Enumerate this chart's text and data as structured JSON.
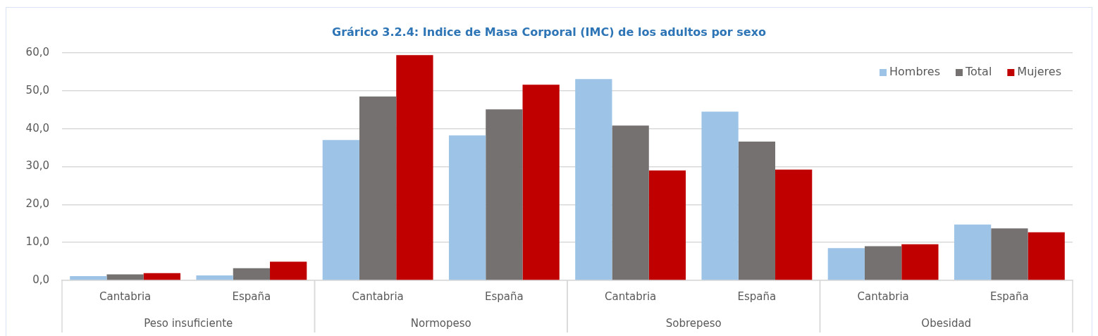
{
  "chart_data": {
    "type": "bar",
    "title": "Grárico 3.2.4: Indice de Masa Corporal (IMC) de los adultos por sexo",
    "categories": [
      "Cantabria",
      "España",
      "Cantabria",
      "España",
      "Cantabria",
      "España",
      "Cantabria",
      "España"
    ],
    "series": [
      {
        "name": "Hombres",
        "color": "#9dc3e6",
        "values": [
          1.1,
          1.3,
          37.0,
          38.2,
          53.1,
          44.5,
          8.5,
          14.7
        ]
      },
      {
        "name": "Total",
        "color": "#767171",
        "values": [
          1.6,
          3.2,
          48.5,
          45.1,
          40.8,
          36.6,
          9.0,
          13.7
        ]
      },
      {
        "name": "Mujeres",
        "color": "#c00000",
        "values": [
          1.9,
          4.9,
          59.4,
          51.6,
          29.0,
          29.2,
          9.5,
          12.7
        ]
      }
    ],
    "ylim": [
      0,
      60
    ],
    "yticks": [
      {
        "value": 0,
        "label": "0,0"
      },
      {
        "value": 10,
        "label": "10,0"
      },
      {
        "value": 20,
        "label": "20,0"
      },
      {
        "value": 30,
        "label": "30,0"
      },
      {
        "value": 40,
        "label": "40,0"
      },
      {
        "value": 50,
        "label": "50,0"
      },
      {
        "value": 60,
        "label": "60,0"
      }
    ],
    "grid": "y",
    "legend": "top right",
    "annotations": [
      "Peso insuficiente",
      "Normopeso",
      "Sobrepeso",
      "Obesidad"
    ]
  }
}
